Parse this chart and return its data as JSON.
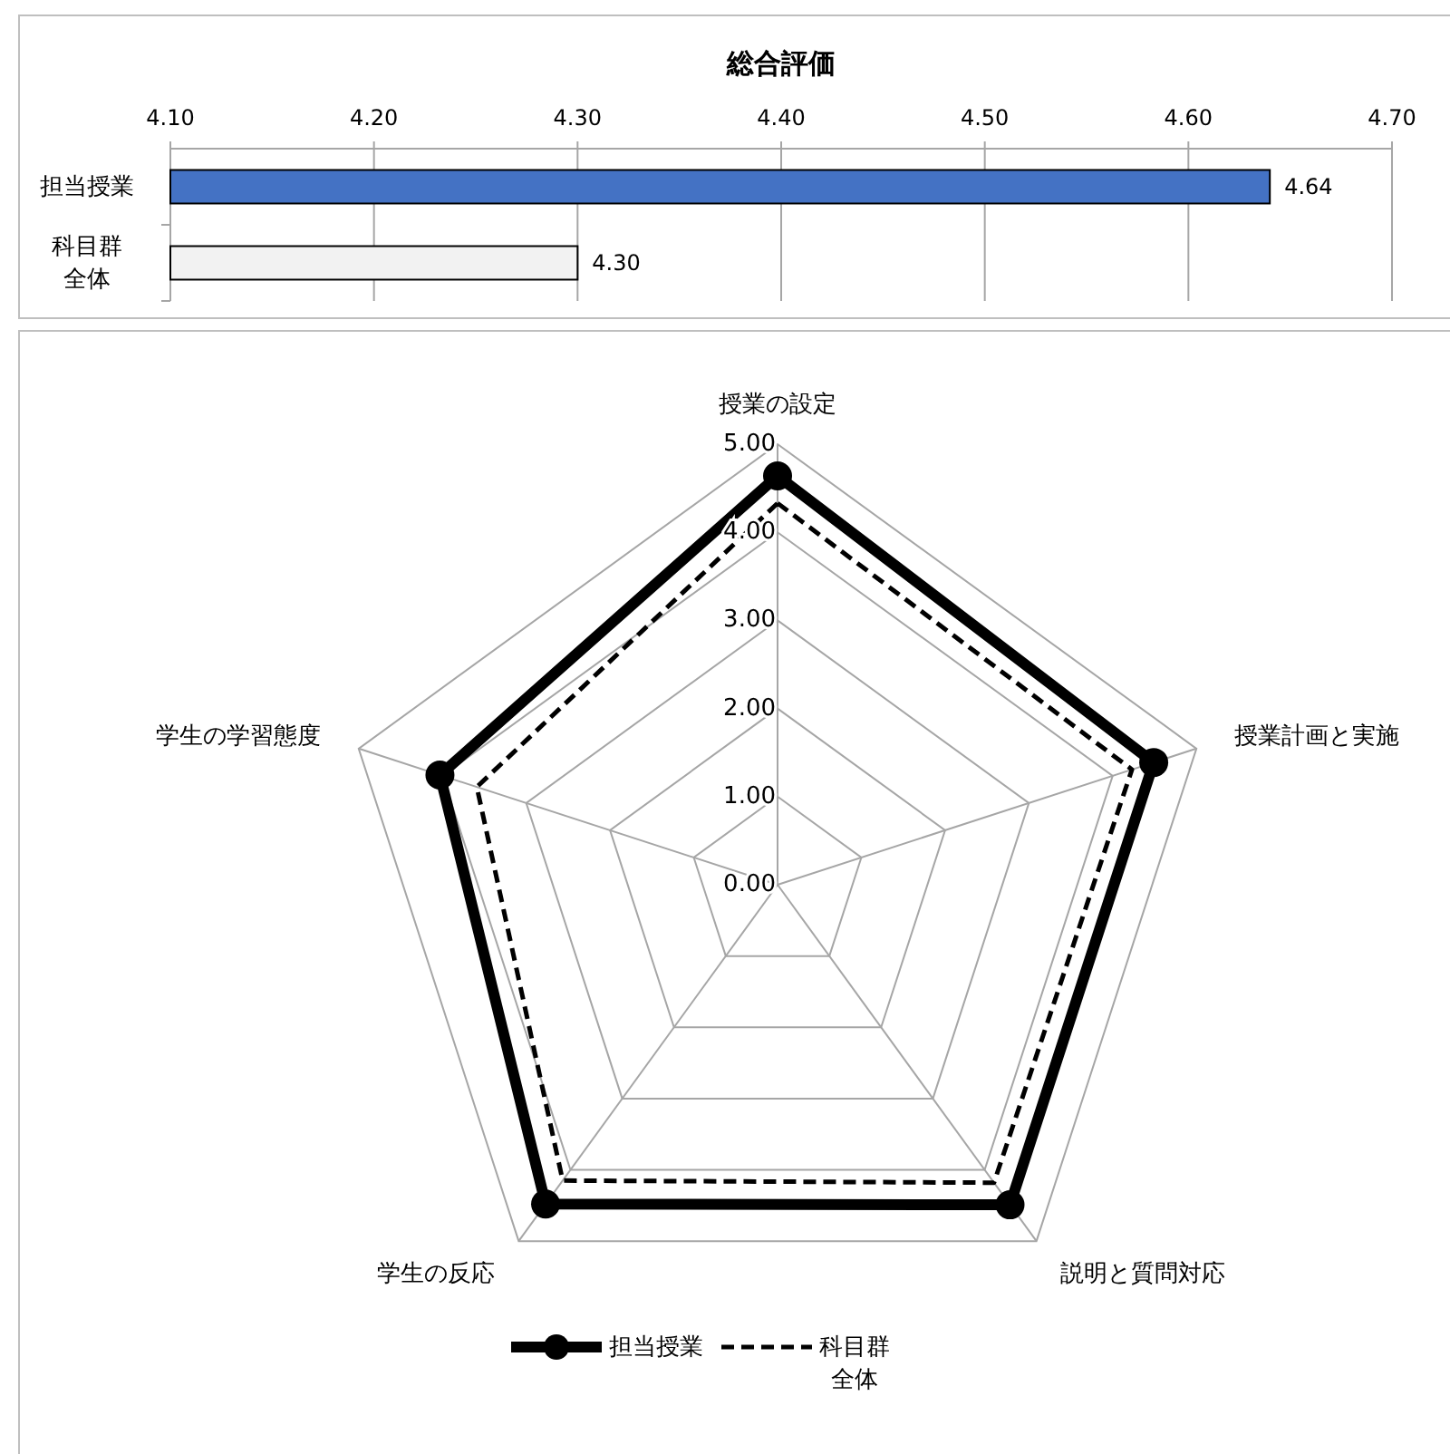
{
  "chart_data": [
    {
      "type": "bar",
      "orientation": "horizontal",
      "title": "総合評価",
      "categories": [
        "担当授業",
        "科目群全体"
      ],
      "values": [
        4.64,
        4.3
      ],
      "colors": [
        "#4472c4",
        "#f2f2f2"
      ],
      "value_labels": [
        "4.64",
        "4.30"
      ],
      "xlim": [
        4.1,
        4.7
      ],
      "xticks": [
        {
          "value": 4.1,
          "label": "4.10"
        },
        {
          "value": 4.2,
          "label": "4.20"
        },
        {
          "value": 4.3,
          "label": "4.30"
        },
        {
          "value": 4.4,
          "label": "4.40"
        },
        {
          "value": 4.5,
          "label": "4.50"
        },
        {
          "value": 4.6,
          "label": "4.60"
        },
        {
          "value": 4.7,
          "label": "4.70"
        }
      ],
      "grid": "x"
    },
    {
      "type": "radar",
      "categories": [
        "授業の設定",
        "授業計画と実施",
        "説明と質問対応",
        "学生の反応",
        "学生の学習態度"
      ],
      "series": [
        {
          "name": "担当授業",
          "color": "#000000",
          "values": [
            4.64,
            4.49,
            4.49,
            4.48,
            4.03
          ],
          "line_style": "solid",
          "marker": "circle"
        },
        {
          "name": "科目群全体",
          "color": "#000000",
          "values": [
            4.33,
            4.23,
            4.18,
            4.15,
            3.59
          ],
          "line_style": "dashed",
          "marker": "none"
        }
      ],
      "ylim": [
        0,
        5
      ],
      "yticks": [
        {
          "value": 0,
          "label": "0.00"
        },
        {
          "value": 1,
          "label": "1.00"
        },
        {
          "value": 2,
          "label": "2.00"
        },
        {
          "value": 3,
          "label": "3.00"
        },
        {
          "value": 4,
          "label": "4.00"
        },
        {
          "value": 5,
          "label": "5.00"
        }
      ],
      "grid": true,
      "legend": "bottom"
    }
  ]
}
